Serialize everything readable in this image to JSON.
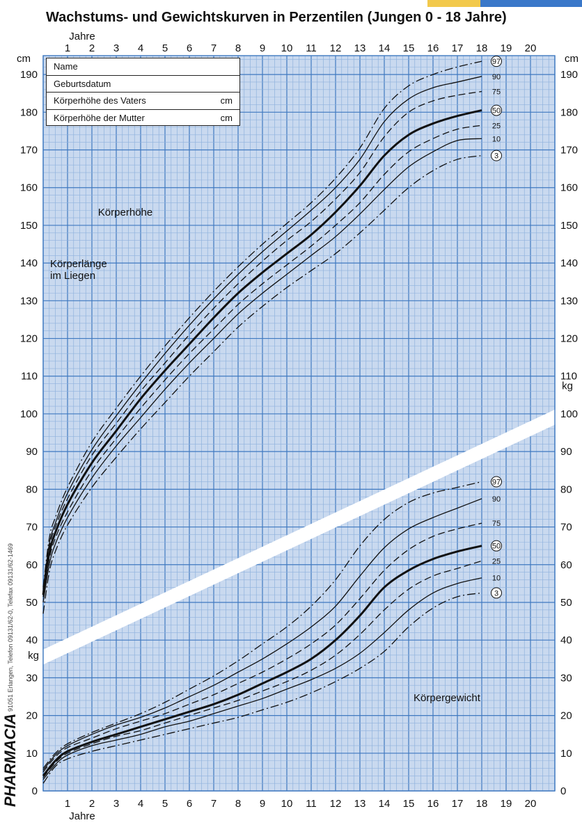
{
  "chart_data": [
    {
      "type": "line",
      "title": "Wachstums- und Gewichtskurven in Perzentilen (Jungen 0 - 18 Jahre)",
      "xlabel": "Jahre",
      "ylabel": "cm",
      "xlim": [
        0,
        21
      ],
      "ylim": [
        0,
        195
      ],
      "grid": true,
      "annotations": [
        "Körperhöhe",
        "Körperlänge im Liegen"
      ],
      "x_ticks": [
        1,
        2,
        3,
        4,
        5,
        6,
        7,
        8,
        9,
        10,
        11,
        12,
        13,
        14,
        15,
        16,
        17,
        18,
        19,
        20
      ],
      "y_ticks": [
        0,
        10,
        20,
        30,
        40,
        50,
        60,
        70,
        80,
        90,
        100,
        110,
        120,
        130,
        140,
        150,
        160,
        170,
        180,
        190
      ],
      "series": [
        {
          "name": "97",
          "style": "dashdot",
          "x": [
            0,
            0.25,
            0.5,
            1,
            2,
            3,
            4,
            5,
            6,
            7,
            8,
            9,
            10,
            11,
            12,
            13,
            14,
            15,
            16,
            17,
            18
          ],
          "y": [
            54,
            67,
            72.5,
            80.5,
            92.5,
            101.5,
            110,
            118,
            125.5,
            132.5,
            139,
            145,
            150.5,
            156,
            162.5,
            170.5,
            181,
            187,
            190,
            192,
            193.5
          ]
        },
        {
          "name": "90",
          "style": "solid",
          "x": [
            0,
            0.25,
            0.5,
            1,
            2,
            3,
            4,
            5,
            6,
            7,
            8,
            9,
            10,
            11,
            12,
            13,
            14,
            15,
            16,
            17,
            18
          ],
          "y": [
            53.5,
            65.5,
            71,
            79,
            90.5,
            99.5,
            108,
            116,
            123.5,
            130.5,
            137,
            143,
            148.5,
            154,
            160,
            167.5,
            177.5,
            183.5,
            186.5,
            188,
            189.5
          ]
        },
        {
          "name": "75",
          "style": "dash",
          "x": [
            0,
            0.25,
            0.5,
            1,
            2,
            3,
            4,
            5,
            6,
            7,
            8,
            9,
            10,
            11,
            12,
            13,
            14,
            15,
            16,
            17,
            18
          ],
          "y": [
            53,
            64.5,
            70,
            77.5,
            89,
            97.5,
            106,
            113.5,
            121,
            128,
            134.5,
            140.5,
            146,
            151,
            157,
            164,
            173.5,
            180,
            183,
            184.5,
            185.5
          ]
        },
        {
          "name": "50",
          "style": "bold",
          "x": [
            0,
            0.25,
            0.5,
            1,
            2,
            3,
            4,
            5,
            6,
            7,
            8,
            9,
            10,
            11,
            12,
            13,
            14,
            15,
            16,
            17,
            18
          ],
          "y": [
            52,
            63,
            68.5,
            76,
            87,
            95.5,
            104,
            111.5,
            118.5,
            125.5,
            132,
            137.5,
            142.5,
            147.5,
            153.5,
            160.5,
            168.5,
            174,
            177,
            179,
            180.5
          ]
        },
        {
          "name": "25",
          "style": "dash",
          "x": [
            0,
            0.25,
            0.5,
            1,
            2,
            3,
            4,
            5,
            6,
            7,
            8,
            9,
            10,
            11,
            12,
            13,
            14,
            15,
            16,
            17,
            18
          ],
          "y": [
            51.5,
            61.5,
            67,
            74,
            85,
            93.5,
            101.5,
            109,
            116,
            122.5,
            129,
            134.5,
            139.5,
            144.5,
            150,
            156,
            163.5,
            169.5,
            173,
            175.5,
            176.5
          ]
        },
        {
          "name": "10",
          "style": "solid",
          "x": [
            0,
            0.25,
            0.5,
            1,
            2,
            3,
            4,
            5,
            6,
            7,
            8,
            9,
            10,
            11,
            12,
            13,
            14,
            15,
            16,
            17,
            18
          ],
          "y": [
            50,
            60,
            65.5,
            72.5,
            83,
            91.5,
            99,
            106.5,
            113.5,
            120,
            126.5,
            132,
            137,
            142,
            147,
            153,
            159.5,
            165.5,
            169.5,
            172.5,
            173
          ]
        },
        {
          "name": "3",
          "style": "dashdot",
          "x": [
            0,
            0.25,
            0.5,
            1,
            2,
            3,
            4,
            5,
            6,
            7,
            8,
            9,
            10,
            11,
            12,
            13,
            14,
            15,
            16,
            17,
            18
          ],
          "y": [
            47,
            58,
            63.5,
            70.5,
            80.5,
            88.5,
            96,
            103,
            110,
            116.5,
            123,
            128.5,
            133.5,
            138,
            142.5,
            148,
            154,
            160,
            164.5,
            167.5,
            168.5
          ]
        }
      ]
    },
    {
      "type": "line",
      "title": "",
      "xlabel": "Jahre",
      "ylabel": "kg",
      "xlim": [
        0,
        21
      ],
      "ylim": [
        0,
        195
      ],
      "grid": true,
      "annotations": [
        "Körpergewicht"
      ],
      "x_ticks": [
        1,
        2,
        3,
        4,
        5,
        6,
        7,
        8,
        9,
        10,
        11,
        12,
        13,
        14,
        15,
        16,
        17,
        18,
        19,
        20
      ],
      "y_ticks": [
        0,
        10,
        20,
        30,
        40
      ],
      "series": [
        {
          "name": "97",
          "style": "dashdot",
          "x": [
            0,
            0.5,
            1,
            2,
            3,
            4,
            5,
            6,
            7,
            8,
            9,
            10,
            11,
            12,
            13,
            14,
            15,
            16,
            17,
            18
          ],
          "y": [
            6,
            10,
            12.5,
            15.5,
            18,
            20.5,
            23.5,
            27,
            30.5,
            34.5,
            39,
            43.5,
            49,
            56,
            65,
            72,
            76.5,
            79,
            80.5,
            82
          ]
        },
        {
          "name": "90",
          "style": "solid",
          "x": [
            0,
            0.5,
            1,
            2,
            3,
            4,
            5,
            6,
            7,
            8,
            9,
            10,
            11,
            12,
            13,
            14,
            15,
            16,
            17,
            18
          ],
          "y": [
            5.5,
            9.5,
            12,
            15,
            17.5,
            19.5,
            22,
            25,
            28,
            31.5,
            35,
            39,
            43.5,
            49,
            57,
            64.5,
            69.5,
            72.5,
            75,
            77.5
          ]
        },
        {
          "name": "75",
          "style": "dash",
          "x": [
            0,
            0.5,
            1,
            2,
            3,
            4,
            5,
            6,
            7,
            8,
            9,
            10,
            11,
            12,
            13,
            14,
            15,
            16,
            17,
            18
          ],
          "y": [
            5,
            9,
            11.5,
            14,
            16.5,
            18.5,
            20.5,
            23,
            25.5,
            28.5,
            31.5,
            35,
            39,
            44,
            51,
            58.5,
            64,
            67.5,
            69.5,
            71
          ]
        },
        {
          "name": "50",
          "style": "bold",
          "x": [
            0,
            0.5,
            1,
            2,
            3,
            4,
            5,
            6,
            7,
            8,
            9,
            10,
            11,
            12,
            13,
            14,
            15,
            16,
            17,
            18
          ],
          "y": [
            4,
            8,
            10.5,
            13,
            15,
            17,
            19,
            21,
            23,
            25.5,
            28.5,
            31.5,
            35,
            40,
            46.5,
            54,
            58.5,
            61.5,
            63.5,
            65
          ]
        },
        {
          "name": "25",
          "style": "dash",
          "x": [
            0,
            0.5,
            1,
            2,
            3,
            4,
            5,
            6,
            7,
            8,
            9,
            10,
            11,
            12,
            13,
            14,
            15,
            16,
            17,
            18
          ],
          "y": [
            3.5,
            7.5,
            10,
            12.5,
            14.5,
            16,
            18,
            20,
            22,
            24,
            26.5,
            29,
            32,
            36,
            41.5,
            48,
            53.5,
            57,
            59,
            61
          ]
        },
        {
          "name": "10",
          "style": "solid",
          "x": [
            0,
            0.5,
            1,
            2,
            3,
            4,
            5,
            6,
            7,
            8,
            9,
            10,
            11,
            12,
            13,
            14,
            15,
            16,
            17,
            18
          ],
          "y": [
            3,
            7,
            9.5,
            12,
            13.5,
            15,
            17,
            18.5,
            20.5,
            22.5,
            24.5,
            27,
            29.5,
            32.5,
            36.5,
            42,
            48,
            52.5,
            55,
            56.5
          ]
        },
        {
          "name": "3",
          "style": "dashdot",
          "x": [
            0,
            0.5,
            1,
            2,
            3,
            4,
            5,
            6,
            7,
            8,
            9,
            10,
            11,
            12,
            13,
            14,
            15,
            16,
            17,
            18
          ],
          "y": [
            2,
            6.5,
            8.5,
            10.5,
            12,
            13.5,
            15,
            16.5,
            18,
            19.5,
            21.5,
            23.5,
            26,
            29,
            32.5,
            37,
            43.5,
            48.5,
            51.5,
            52.5
          ]
        }
      ]
    }
  ],
  "labels": {
    "jahre_top": "Jahre",
    "jahre_bottom": "Jahre",
    "cm_left": "cm",
    "cm_right": "cm",
    "kg_left": "kg",
    "kg_right": "kg",
    "koerperhoehe": "Körperhöhe",
    "koerperlaenge_line1": "Körperlänge",
    "koerperlaenge_line2": "im Liegen",
    "koerpergewicht": "Körpergewicht"
  },
  "info_box": {
    "name": "Name",
    "geburtsdatum": "Geburtsdatum",
    "vater": "Körperhöhe des Vaters",
    "mutter": "Körperhöhe der Mutter",
    "unit": "cm"
  },
  "side_brand": "PHARMACIA",
  "side_text": "91051 Erlangen, Telefon 09131/62-0, Telefax 09131/62-1469",
  "colors": {
    "background": "#c9d9ef",
    "grid_major": "#3f79c0",
    "grid_minor": "#8fb2dd",
    "line": "#111111",
    "accent_yellow": "#f2c94c",
    "accent_blue": "#3a78c9"
  }
}
